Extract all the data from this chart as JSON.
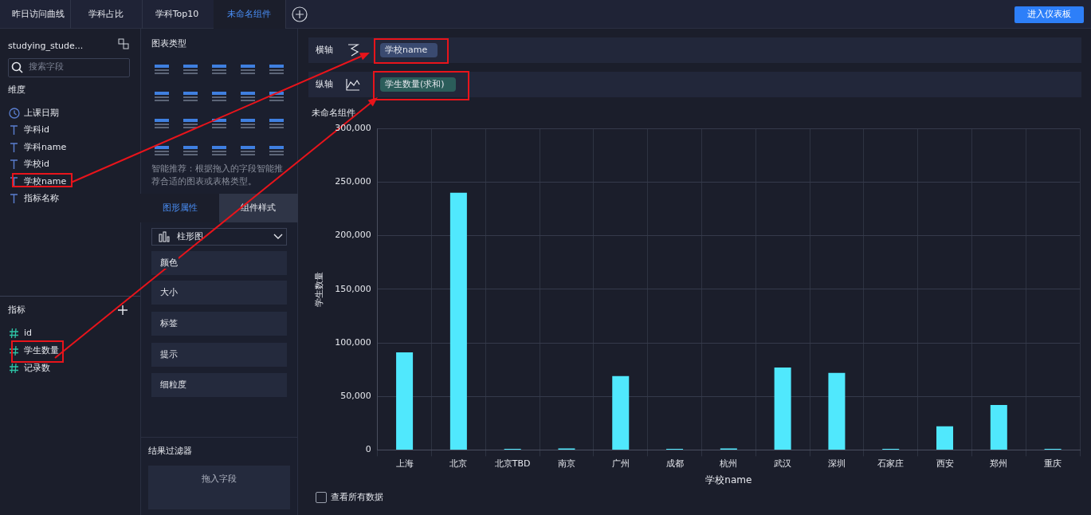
{
  "chart_data": [
    {
      "type": "other",
      "annotations": [
        "昨日访问曲线",
        "学科占比",
        "学科Top10",
        "未命名组件",
        "进入仪表板",
        "studying_stude...",
        "搜索字段",
        "维度",
        "上课日期",
        "学科id",
        "学科name",
        "学校id",
        "学校name",
        "指标名称",
        "指标",
        "id",
        "学生数量",
        "记录数",
        "图表类型",
        "智能推荐：根据拖入的字段智能推荐合适的图表或表格类型。",
        "图形属性",
        "组件样式",
        "柱形图",
        "颜色",
        "大小",
        "标签",
        "提示",
        "细粒度",
        "结果过滤器",
        "拖入字段",
        "横轴",
        "学校name",
        "纵轴",
        "学生数量(求和)",
        "查看所有数据"
      ]
    },
    {
      "type": "bar",
      "title": "未命名组件",
      "xlabel": "学校name",
      "ylabel": "学生数量",
      "categories": [
        "上海",
        "北京",
        "北京TBD",
        "南京",
        "广州",
        "成都",
        "杭州",
        "武汉",
        "深圳",
        "石家庄",
        "西安",
        "郑州",
        "重庆"
      ],
      "values": [
        91000,
        240000,
        1000,
        1500,
        69000,
        1000,
        1500,
        77000,
        72000,
        1000,
        22000,
        42000,
        1000
      ],
      "color": "#50e8fd",
      "ylim": [
        0,
        300000
      ],
      "yticks": [
        0,
        {
          "value": 50000,
          "label": "50,000"
        },
        {
          "value": 100000,
          "label": "100,000"
        },
        {
          "value": 150000,
          "label": "150,000"
        },
        {
          "value": 200000,
          "label": "200,000"
        },
        {
          "value": 250000,
          "label": "250,000"
        },
        {
          "value": 300000,
          "label": "300,000"
        }
      ],
      "grid": true
    }
  ]
}
